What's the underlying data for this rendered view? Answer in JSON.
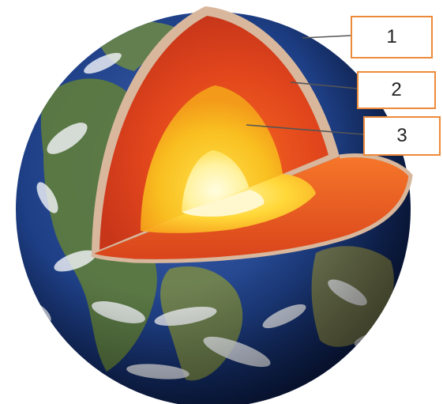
{
  "diagram": {
    "labels": [
      {
        "text": "1"
      },
      {
        "text": "2"
      },
      {
        "text": "3"
      }
    ]
  },
  "colors": {
    "label_border": "#ed8a3a",
    "leader_line": "#555555",
    "ocean": "#1e3f86",
    "land": "#5f7d3c",
    "clouds": "#f4f6fa",
    "crust": "#d8b79d",
    "mantle": "#e2461c",
    "outer_core": "#f7b41e",
    "inner_core": "#fff4a6"
  }
}
